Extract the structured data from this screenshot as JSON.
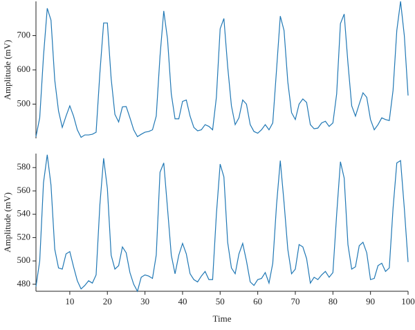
{
  "chart_data": [
    {
      "type": "line",
      "ylabel": "Amplitude (mV)",
      "x": [
        1,
        2,
        3,
        4,
        5,
        6,
        7,
        8,
        9,
        10,
        11,
        12,
        13,
        14,
        15,
        16,
        17,
        18,
        19,
        20,
        21,
        22,
        23,
        24,
        25,
        26,
        27,
        28,
        29,
        30,
        31,
        32,
        33,
        34,
        35,
        36,
        37,
        38,
        39,
        40,
        41,
        42,
        43,
        44,
        45,
        46,
        47,
        48,
        49,
        50,
        51,
        52,
        53,
        54,
        55,
        56,
        57,
        58,
        59,
        60,
        61,
        62,
        63,
        64,
        65,
        66,
        67,
        68,
        69,
        70,
        71,
        72,
        73,
        74,
        75,
        76,
        77,
        78,
        79,
        80,
        81,
        82,
        83,
        84,
        85,
        86,
        87,
        88,
        89,
        90,
        91,
        92,
        93,
        94,
        95,
        96,
        97,
        98,
        99,
        100
      ],
      "series": [
        {
          "color": "#1f77b4",
          "values": [
            405,
            460,
            640,
            780,
            745,
            570,
            480,
            432,
            465,
            495,
            465,
            425,
            403,
            410,
            410,
            412,
            418,
            590,
            737,
            737,
            575,
            470,
            448,
            492,
            493,
            460,
            425,
            405,
            412,
            418,
            420,
            425,
            465,
            640,
            772,
            690,
            530,
            457,
            457,
            508,
            512,
            465,
            432,
            422,
            425,
            440,
            435,
            425,
            520,
            720,
            750,
            610,
            495,
            440,
            460,
            512,
            500,
            440,
            420,
            415,
            425,
            440,
            425,
            445,
            600,
            757,
            715,
            565,
            475,
            455,
            500,
            515,
            505,
            440,
            428,
            430,
            445,
            450,
            435,
            445,
            530,
            735,
            763,
            620,
            495,
            465,
            500,
            533,
            520,
            455,
            425,
            440,
            460,
            455,
            452,
            540,
            715,
            800,
            700,
            525
          ]
        }
      ],
      "xlim": [
        1,
        100
      ],
      "ylim": [
        400,
        800
      ],
      "yticks": [
        500,
        600,
        700
      ]
    },
    {
      "type": "line",
      "ylabel": "Amplitude (mV)",
      "xlabel": "Time",
      "x": [
        1,
        2,
        3,
        4,
        5,
        6,
        7,
        8,
        9,
        10,
        11,
        12,
        13,
        14,
        15,
        16,
        17,
        18,
        19,
        20,
        21,
        22,
        23,
        24,
        25,
        26,
        27,
        28,
        29,
        30,
        31,
        32,
        33,
        34,
        35,
        36,
        37,
        38,
        39,
        40,
        41,
        42,
        43,
        44,
        45,
        46,
        47,
        48,
        49,
        50,
        51,
        52,
        53,
        54,
        55,
        56,
        57,
        58,
        59,
        60,
        61,
        62,
        63,
        64,
        65,
        66,
        67,
        68,
        69,
        70,
        71,
        72,
        73,
        74,
        75,
        76,
        77,
        78,
        79,
        80,
        81,
        82,
        83,
        84,
        85,
        86,
        87,
        88,
        89,
        90,
        91,
        92,
        93,
        94,
        95,
        96,
        97,
        98,
        99,
        100
      ],
      "series": [
        {
          "color": "#1f77b4",
          "values": [
            478,
            500,
            567,
            591,
            565,
            510,
            494,
            493,
            506,
            508,
            495,
            483,
            476,
            479,
            483,
            481,
            488,
            548,
            588,
            562,
            505,
            493,
            496,
            512,
            507,
            490,
            480,
            474,
            486,
            488,
            487,
            485,
            505,
            576,
            584,
            545,
            505,
            489,
            505,
            515,
            506,
            489,
            484,
            482,
            487,
            491,
            484,
            484,
            540,
            583,
            572,
            516,
            494,
            489,
            506,
            515,
            500,
            482,
            479,
            484,
            485,
            490,
            481,
            498,
            548,
            586,
            550,
            510,
            489,
            493,
            514,
            512,
            502,
            481,
            486,
            484,
            488,
            491,
            486,
            490,
            540,
            585,
            571,
            514,
            493,
            495,
            513,
            516,
            507,
            484,
            485,
            496,
            498,
            491,
            494,
            545,
            584,
            586,
            545,
            499
          ]
        }
      ],
      "xlim": [
        1,
        100
      ],
      "ylim": [
        474,
        592
      ],
      "yticks": [
        480,
        500,
        520,
        540,
        560,
        580
      ],
      "xticks": [
        10,
        20,
        30,
        40,
        50,
        60,
        70,
        80,
        90,
        100
      ]
    }
  ]
}
